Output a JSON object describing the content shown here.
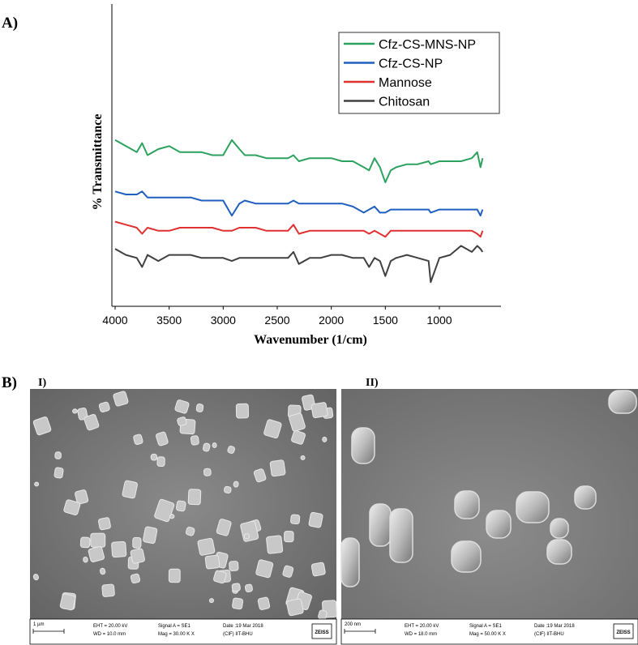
{
  "panel_a_label": "A)",
  "chart_data": {
    "type": "line",
    "ylabel": "% Transmittance",
    "xlabel": "Wavenumber (1/cm)",
    "xlim": [
      4030,
      430
    ],
    "xticks": [
      4000,
      3500,
      3000,
      2500,
      2000,
      1500,
      1000
    ],
    "ylim": [
      0,
      100
    ],
    "x": [
      4000,
      3900,
      3800,
      3750,
      3700,
      3600,
      3500,
      3400,
      3300,
      3200,
      3100,
      3000,
      2920,
      2850,
      2800,
      2700,
      2600,
      2500,
      2400,
      2350,
      2300,
      2200,
      2100,
      2000,
      1900,
      1800,
      1700,
      1650,
      1600,
      1550,
      1500,
      1450,
      1400,
      1300,
      1200,
      1100,
      1080,
      1000,
      900,
      800,
      700,
      650,
      620,
      600
    ],
    "series": [
      {
        "name": "Cfz-CS-MNS-NP",
        "color": "#2ca25f",
        "values": [
          55,
          53,
          51,
          54,
          50,
          52,
          53,
          51,
          51,
          51,
          50,
          50,
          55,
          52,
          50,
          50,
          49,
          49,
          49,
          50,
          48,
          49,
          49,
          49,
          48,
          48,
          46,
          45,
          49,
          46,
          41,
          45,
          46,
          47,
          47,
          48,
          47,
          48,
          48,
          48,
          49,
          51,
          46,
          49
        ]
      },
      {
        "name": "Cfz-CS-NP",
        "color": "#1f5fbf",
        "values": [
          38,
          37,
          37,
          38,
          36,
          36,
          36,
          36,
          36,
          35,
          35,
          35,
          30,
          34,
          35,
          34,
          34,
          34,
          34,
          35,
          34,
          34,
          34,
          34,
          34,
          33,
          31,
          32,
          33,
          31,
          31,
          32,
          32,
          32,
          32,
          32,
          31,
          32,
          32,
          32,
          32,
          32,
          30,
          32
        ]
      },
      {
        "name": "Mannose",
        "color": "#e03030",
        "values": [
          28,
          27,
          26,
          24,
          26,
          25,
          25,
          26,
          26,
          26,
          26,
          25,
          25,
          26,
          26,
          26,
          25,
          25,
          25,
          27,
          24,
          25,
          25,
          25,
          25,
          25,
          25,
          24,
          25,
          24,
          23,
          25,
          25,
          25,
          25,
          25,
          25,
          25,
          25,
          25,
          25,
          24,
          23,
          25
        ]
      },
      {
        "name": "Chitosan",
        "color": "#404040",
        "values": [
          19,
          17,
          16,
          13,
          17,
          15,
          17,
          17,
          17,
          16,
          16,
          16,
          15,
          16,
          16,
          16,
          16,
          16,
          16,
          18,
          14,
          16,
          16,
          17,
          17,
          16,
          16,
          13,
          16,
          15,
          10,
          15,
          16,
          17,
          16,
          15,
          8,
          16,
          17,
          20,
          18,
          20,
          19,
          18
        ]
      }
    ],
    "legend": "upper right"
  },
  "panel_b": {
    "label": "B)",
    "images": [
      {
        "label": "I)",
        "scale_bar": "1 µm",
        "info": [
          "EHT = 20.00 kV",
          "WD = 10.0 mm",
          "Signal A = SE1",
          "Mag =  30.00 K X",
          "Date :19 Mar 2018",
          "(CIF) IIT-BHU"
        ],
        "logo": "ZEISS"
      },
      {
        "label": "II)",
        "scale_bar": "200 nm",
        "info": [
          "EHT = 20.00 kV",
          "WD = 18.0 mm",
          "Signal A = SE1",
          "Mag =  50.00 K X",
          "Date :19 Mar 2018",
          "(CIF) IIT-BHU"
        ],
        "logo": "ZEISS"
      }
    ]
  }
}
